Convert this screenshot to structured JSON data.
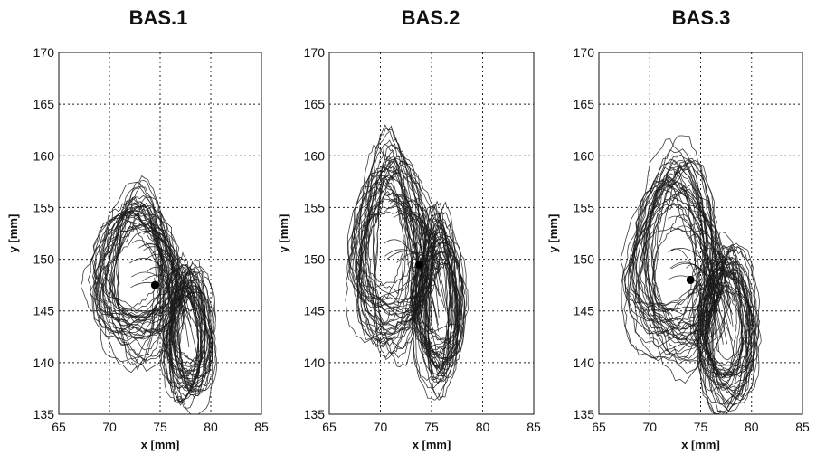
{
  "chart_data": [
    {
      "type": "line",
      "title": "BAS.1",
      "xlabel": "x [mm]",
      "ylabel": "y [mm]",
      "xlim": [
        65,
        85
      ],
      "ylim": [
        135,
        170
      ],
      "xticks": [
        "65",
        "70",
        "75",
        "80",
        "85"
      ],
      "yticks": [
        "135",
        "140",
        "145",
        "150",
        "155",
        "160",
        "165",
        "170"
      ],
      "grid": true,
      "marker": {
        "x": 74.5,
        "y": 147.5
      },
      "regions": [
        {
          "name": "left lobe",
          "cx": 72.5,
          "cy": 149.0,
          "rx": 3.6,
          "ry": 7.5
        },
        {
          "name": "right lobe",
          "cx": 77.8,
          "cy": 143.0,
          "rx": 2.2,
          "ry": 6.0
        }
      ]
    },
    {
      "type": "line",
      "title": "BAS.2",
      "xlabel": "x [mm]",
      "ylabel": "y [mm]",
      "xlim": [
        65,
        85
      ],
      "ylim": [
        135,
        170
      ],
      "xticks": [
        "65",
        "70",
        "75",
        "80",
        "85"
      ],
      "yticks": [
        "135",
        "140",
        "145",
        "150",
        "155",
        "160",
        "165",
        "170"
      ],
      "grid": true,
      "marker": {
        "x": 73.8,
        "y": 149.5
      },
      "regions": [
        {
          "name": "left lobe",
          "cx": 71.0,
          "cy": 151.0,
          "rx": 3.4,
          "ry": 9.0
        },
        {
          "name": "right lobe",
          "cx": 75.8,
          "cy": 146.0,
          "rx": 2.2,
          "ry": 7.5
        }
      ]
    },
    {
      "type": "line",
      "title": "BAS.3",
      "xlabel": "x [mm]",
      "ylabel": "y [mm]",
      "xlim": [
        65,
        85
      ],
      "ylim": [
        135,
        170
      ],
      "xticks": [
        "65",
        "70",
        "75",
        "80",
        "85"
      ],
      "yticks": [
        "135",
        "140",
        "145",
        "150",
        "155",
        "160",
        "165",
        "170"
      ],
      "grid": true,
      "marker": {
        "x": 74.0,
        "y": 148.0
      },
      "regions": [
        {
          "name": "left lobe",
          "cx": 72.5,
          "cy": 150.0,
          "rx": 4.0,
          "ry": 9.0
        },
        {
          "name": "right lobe",
          "cx": 77.5,
          "cy": 143.5,
          "rx": 2.6,
          "ry": 7.0
        }
      ]
    }
  ]
}
